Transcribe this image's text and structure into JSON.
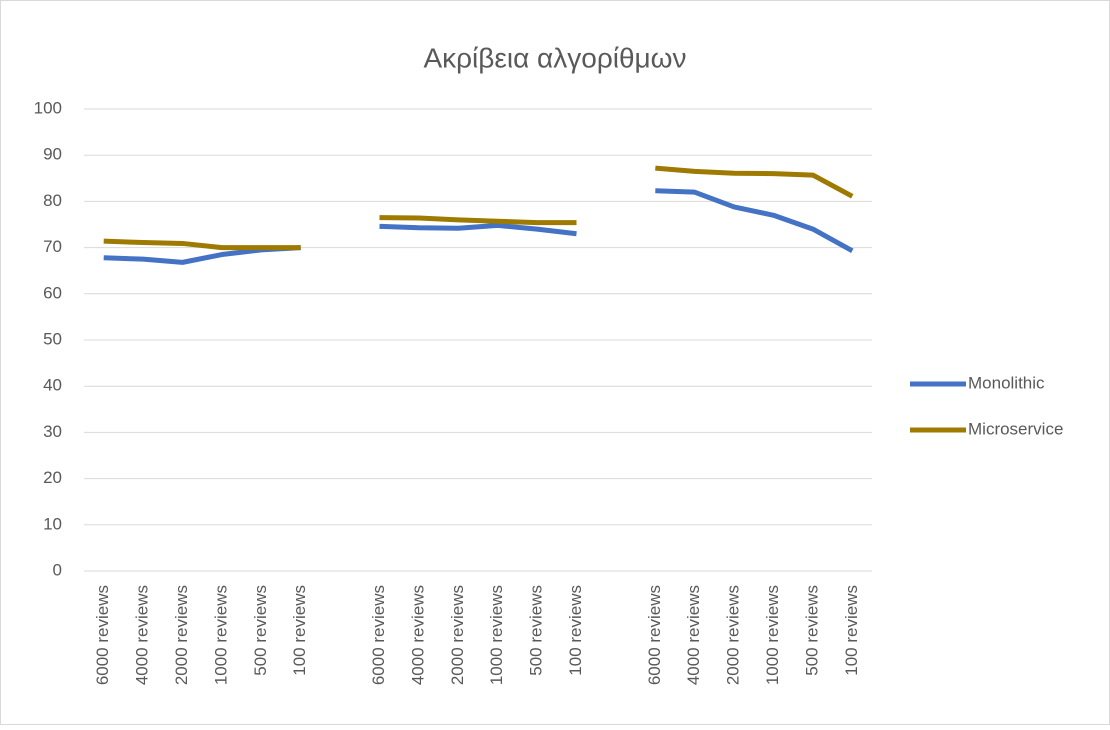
{
  "chart_data": {
    "type": "line",
    "title": "Ακρίβεια αλγορίθμων",
    "categories": [
      "6000 reviews",
      "4000 reviews",
      "2000 reviews",
      "1000 reviews",
      "500 reviews",
      "100 reviews",
      null,
      "6000 reviews",
      "4000 reviews",
      "2000 reviews",
      "1000 reviews",
      "500 reviews",
      "100 reviews",
      null,
      "6000 reviews",
      "4000 reviews",
      "2000 reviews",
      "1000 reviews",
      "500 reviews",
      "100 reviews"
    ],
    "series": [
      {
        "name": "Monolithic",
        "color": "#4472c4",
        "values": [
          67.8,
          67.5,
          66.8,
          68.5,
          69.5,
          70,
          null,
          74.6,
          74.3,
          74.2,
          74.8,
          74,
          73,
          null,
          82.3,
          82,
          78.8,
          77,
          74,
          69.3
        ]
      },
      {
        "name": "Microservice",
        "color": "#9e7a00",
        "values": [
          71.4,
          71.1,
          70.9,
          70,
          70,
          70,
          null,
          76.5,
          76.4,
          76,
          75.7,
          75.4,
          75.4,
          null,
          87.2,
          86.5,
          86.1,
          86,
          85.7,
          81.1
        ]
      }
    ],
    "ylim": [
      0,
      100
    ],
    "yticks": [
      0,
      10,
      20,
      30,
      40,
      50,
      60,
      70,
      80,
      90,
      100
    ],
    "grid": true,
    "legend": "right"
  }
}
